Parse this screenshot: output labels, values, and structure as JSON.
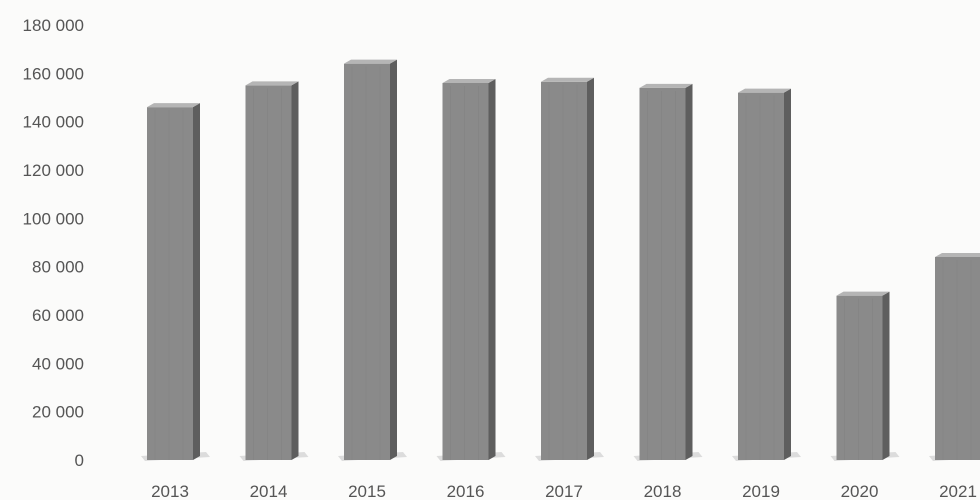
{
  "chart_data": {
    "type": "bar",
    "title": "",
    "xlabel": "",
    "ylabel": "",
    "categories": [
      "2013",
      "2014",
      "2015",
      "2016",
      "2017",
      "2018",
      "2019",
      "2020",
      "2021"
    ],
    "values": [
      146000,
      155000,
      164000,
      156000,
      156500,
      154000,
      152000,
      68000,
      84000
    ],
    "ylim": [
      0,
      180000
    ],
    "yticks": [
      0,
      20000,
      40000,
      60000,
      80000,
      100000,
      120000,
      140000,
      160000,
      180000
    ],
    "ytick_labels": [
      "0",
      "20 000",
      "40 000",
      "60 000",
      "80 000",
      "100 000",
      "120 000",
      "140 000",
      "160 000",
      "180 000"
    ],
    "grid": false,
    "legend": "none",
    "bar_style": "3d-column",
    "colors": {
      "bar_front": "#8a8a8a",
      "bar_side": "#5e5e5e",
      "bar_top": "#b5b5b5",
      "background": "#fbfbfa",
      "text": "#555555"
    }
  }
}
